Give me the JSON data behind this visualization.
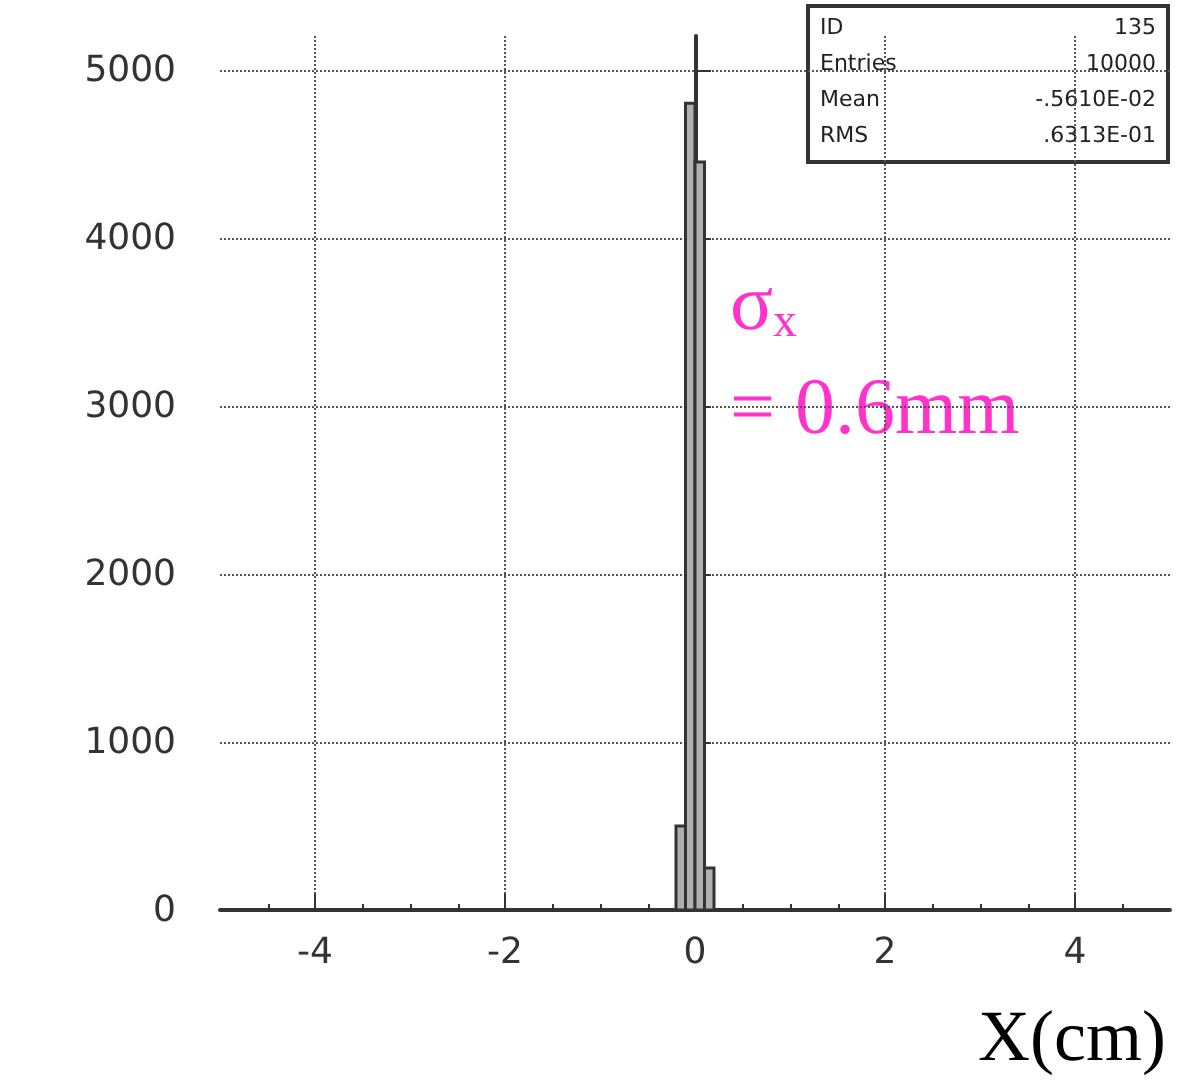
{
  "chart_data": {
    "type": "histogram",
    "xlabel": "X(cm)",
    "bins": [
      -0.2,
      -0.1,
      0,
      0.1,
      0.2
    ],
    "values": [
      500,
      4800,
      4450,
      250
    ],
    "color": "#b0b0b0",
    "xlim": [
      -5,
      5
    ],
    "xticks": [
      -4,
      -2,
      0,
      2,
      4
    ],
    "ylim": [
      0,
      5200
    ],
    "yticks": [
      0,
      1000,
      2000,
      3000,
      4000,
      5000
    ],
    "grid": true,
    "annotations": [
      "ID 135",
      "Entries 10000",
      "Mean -.5610E-02",
      "RMS .6313E-01",
      "σₓ = 0.6mm"
    ]
  }
}
